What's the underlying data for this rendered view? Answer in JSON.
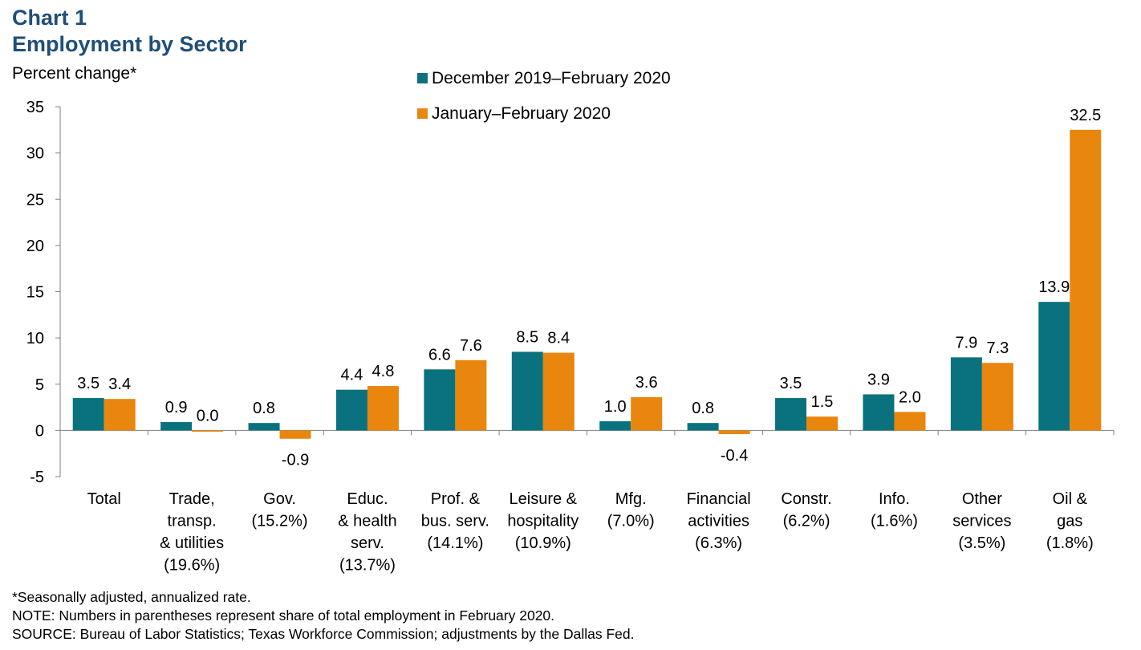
{
  "header": {
    "chart_number": "Chart 1",
    "title": "Employment by Sector",
    "y_axis_label": "Percent change*"
  },
  "footnotes": {
    "asterisk": "*Seasonally adjusted, annualized rate.",
    "note": "NOTE: Numbers in parentheses represent share of total employment in February 2020.",
    "source": "SOURCE: Bureau of Labor Statistics; Texas Workforce Commission; adjustments by the Dallas Fed."
  },
  "colors": {
    "series1": "#0a717e",
    "series2": "#e8860e",
    "title": "#1f4e79",
    "axis": "#7f7f7f"
  },
  "chart_data": {
    "type": "bar",
    "title": "Employment by Sector",
    "ylabel": "Percent change*",
    "xlabel": "",
    "ylim": [
      -5,
      35
    ],
    "yticks": [
      -5,
      0,
      5,
      10,
      15,
      20,
      25,
      30,
      35
    ],
    "grid": false,
    "legend_position": "top",
    "categories": [
      [
        "Total"
      ],
      [
        "Trade,",
        "transp.",
        "& utilities",
        "(19.6%)"
      ],
      [
        "Gov.",
        "(15.2%)"
      ],
      [
        "Educ.",
        "& health",
        "serv.",
        "(13.7%)"
      ],
      [
        "Prof. &",
        "bus. serv.",
        "(14.1%)"
      ],
      [
        "Leisure &",
        "hospitality",
        "(10.9%)"
      ],
      [
        "Mfg.",
        "(7.0%)"
      ],
      [
        "Financial",
        "activities",
        "(6.3%)"
      ],
      [
        "Constr.",
        "(6.2%)"
      ],
      [
        "Info.",
        "(1.6%)"
      ],
      [
        "Other",
        "services",
        "(3.5%)"
      ],
      [
        "Oil &",
        "gas",
        "(1.8%)"
      ]
    ],
    "series": [
      {
        "name": "December 2019–February 2020",
        "values": [
          3.5,
          0.9,
          0.8,
          4.4,
          6.6,
          8.5,
          1.0,
          0.8,
          3.5,
          3.9,
          7.9,
          13.9
        ],
        "labels": [
          "3.5",
          "0.9",
          "0.8",
          "4.4",
          "6.6",
          "8.5",
          "1.0",
          "0.8",
          "3.5",
          "3.9",
          "7.9",
          "13.9"
        ]
      },
      {
        "name": "January–February 2020",
        "values": [
          3.4,
          0.0,
          -0.9,
          4.8,
          7.6,
          8.4,
          3.6,
          -0.4,
          1.5,
          2.0,
          7.3,
          32.5
        ],
        "labels": [
          "3.4",
          "0.0",
          "-0.9",
          "4.8",
          "7.6",
          "8.4",
          "3.6",
          "-0.4",
          "1.5",
          "2.0",
          "7.3",
          "32.5"
        ]
      }
    ]
  }
}
